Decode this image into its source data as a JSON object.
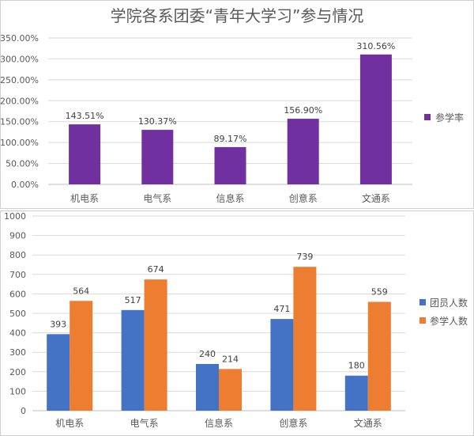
{
  "colors": {
    "purple": "#7030a0",
    "blue": "#4472c4",
    "orange": "#ed7d31"
  },
  "chart_data": [
    {
      "type": "bar",
      "title": "学院各系团委“青年大学习”参与情况",
      "categories": [
        "机电系",
        "电气系",
        "信息系",
        "创意系",
        "文通系"
      ],
      "series": [
        {
          "name": "参学率",
          "values": [
            143.51,
            130.37,
            89.17,
            156.9,
            310.56
          ],
          "labels": [
            "143.51%",
            "130.37%",
            "89.17%",
            "156.90%",
            "310.56%"
          ]
        }
      ],
      "ylim": [
        0,
        350
      ],
      "yticks": [
        0,
        50,
        100,
        150,
        200,
        250,
        300,
        350
      ],
      "ytick_labels": [
        "0.00%",
        "50.00%",
        "100.00%",
        "150.00%",
        "200.00%",
        "250.00%",
        "300.00%",
        "350.00%"
      ],
      "grid": true,
      "legend": "right"
    },
    {
      "type": "bar",
      "categories": [
        "机电系",
        "电气系",
        "信息系",
        "创意系",
        "文通系"
      ],
      "series": [
        {
          "name": "团员人数",
          "values": [
            393,
            517,
            240,
            471,
            180
          ]
        },
        {
          "name": "参学人数",
          "values": [
            564,
            674,
            214,
            739,
            559
          ]
        }
      ],
      "ylim": [
        0,
        1000
      ],
      "yticks": [
        0,
        100,
        200,
        300,
        400,
        500,
        600,
        700,
        800,
        900,
        1000
      ],
      "grid": true,
      "legend": "right"
    }
  ]
}
